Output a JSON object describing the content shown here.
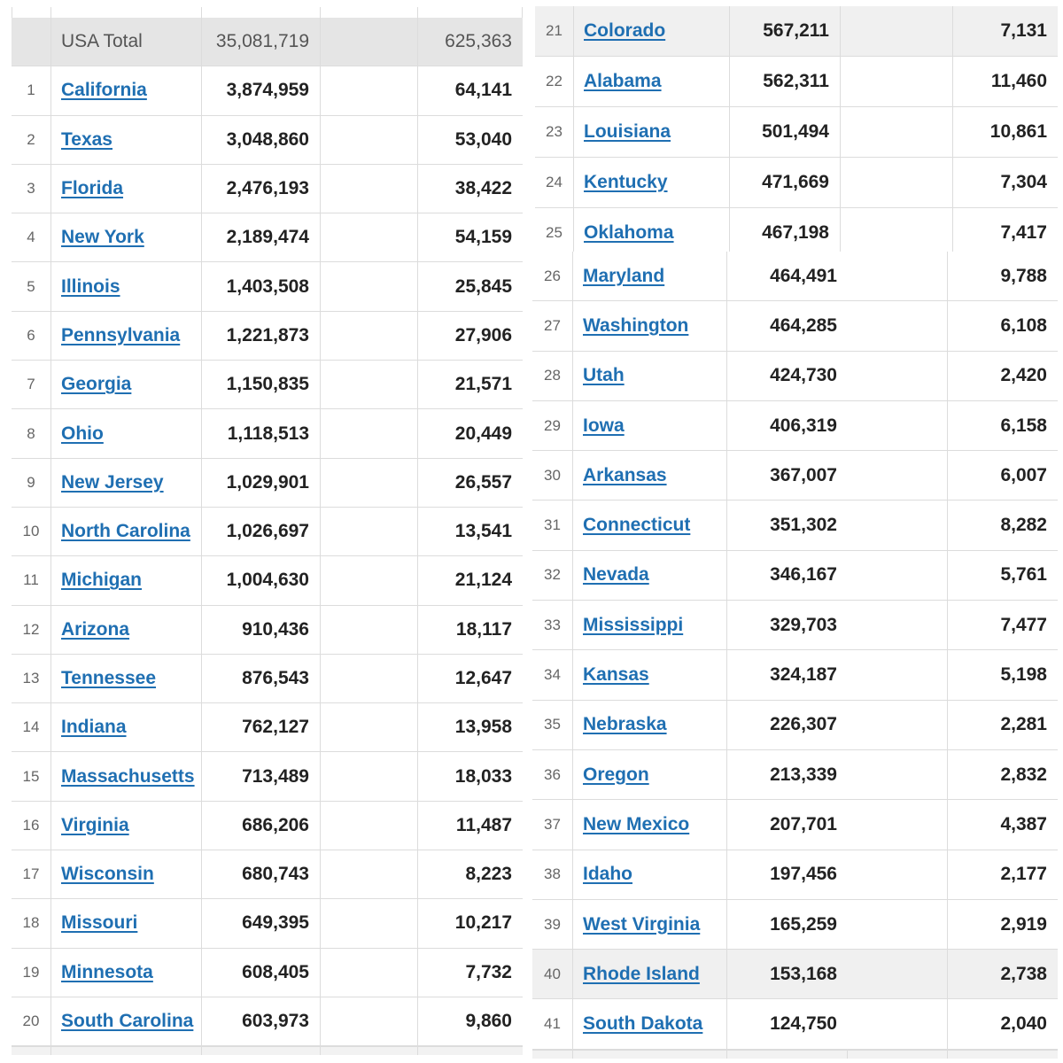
{
  "left_table": {
    "total": {
      "label": "USA Total",
      "cases": "35,081,719",
      "deaths": "625,363"
    },
    "rows": [
      {
        "rank": "1",
        "state": "California",
        "cases": "3,874,959",
        "deaths": "64,141"
      },
      {
        "rank": "2",
        "state": "Texas",
        "cases": "3,048,860",
        "deaths": "53,040"
      },
      {
        "rank": "3",
        "state": "Florida",
        "cases": "2,476,193",
        "deaths": "38,422"
      },
      {
        "rank": "4",
        "state": "New York",
        "cases": "2,189,474",
        "deaths": "54,159"
      },
      {
        "rank": "5",
        "state": "Illinois",
        "cases": "1,403,508",
        "deaths": "25,845"
      },
      {
        "rank": "6",
        "state": "Pennsylvania",
        "cases": "1,221,873",
        "deaths": "27,906"
      },
      {
        "rank": "7",
        "state": "Georgia",
        "cases": "1,150,835",
        "deaths": "21,571"
      },
      {
        "rank": "8",
        "state": "Ohio",
        "cases": "1,118,513",
        "deaths": "20,449"
      },
      {
        "rank": "9",
        "state": "New Jersey",
        "cases": "1,029,901",
        "deaths": "26,557"
      },
      {
        "rank": "10",
        "state": "North Carolina",
        "cases": "1,026,697",
        "deaths": "13,541"
      },
      {
        "rank": "11",
        "state": "Michigan",
        "cases": "1,004,630",
        "deaths": "21,124"
      },
      {
        "rank": "12",
        "state": "Arizona",
        "cases": "910,436",
        "deaths": "18,117"
      },
      {
        "rank": "13",
        "state": "Tennessee",
        "cases": "876,543",
        "deaths": "12,647"
      },
      {
        "rank": "14",
        "state": "Indiana",
        "cases": "762,127",
        "deaths": "13,958"
      },
      {
        "rank": "15",
        "state": "Massachusetts",
        "cases": "713,489",
        "deaths": "18,033"
      },
      {
        "rank": "16",
        "state": "Virginia",
        "cases": "686,206",
        "deaths": "11,487"
      },
      {
        "rank": "17",
        "state": "Wisconsin",
        "cases": "680,743",
        "deaths": "8,223"
      },
      {
        "rank": "18",
        "state": "Missouri",
        "cases": "649,395",
        "deaths": "10,217"
      },
      {
        "rank": "19",
        "state": "Minnesota",
        "cases": "608,405",
        "deaths": "7,732"
      },
      {
        "rank": "20",
        "state": "South Carolina",
        "cases": "603,973",
        "deaths": "9,860"
      }
    ]
  },
  "right_top_table": {
    "rows": [
      {
        "rank": "21",
        "state": "Colorado",
        "cases": "567,211",
        "deaths": "7,131"
      },
      {
        "rank": "22",
        "state": "Alabama",
        "cases": "562,311",
        "deaths": "11,460"
      },
      {
        "rank": "23",
        "state": "Louisiana",
        "cases": "501,494",
        "deaths": "10,861"
      },
      {
        "rank": "24",
        "state": "Kentucky",
        "cases": "471,669",
        "deaths": "7,304"
      },
      {
        "rank": "25",
        "state": "Oklahoma",
        "cases": "467,198",
        "deaths": "7,417"
      }
    ]
  },
  "right_bottom_table": {
    "rows": [
      {
        "rank": "26",
        "state": "Maryland",
        "cases": "464,491",
        "deaths": "9,788"
      },
      {
        "rank": "27",
        "state": "Washington",
        "cases": "464,285",
        "deaths": "6,108"
      },
      {
        "rank": "28",
        "state": "Utah",
        "cases": "424,730",
        "deaths": "2,420"
      },
      {
        "rank": "29",
        "state": "Iowa",
        "cases": "406,319",
        "deaths": "6,158"
      },
      {
        "rank": "30",
        "state": "Arkansas",
        "cases": "367,007",
        "deaths": "6,007"
      },
      {
        "rank": "31",
        "state": "Connecticut",
        "cases": "351,302",
        "deaths": "8,282"
      },
      {
        "rank": "32",
        "state": "Nevada",
        "cases": "346,167",
        "deaths": "5,761"
      },
      {
        "rank": "33",
        "state": "Mississippi",
        "cases": "329,703",
        "deaths": "7,477"
      },
      {
        "rank": "34",
        "state": "Kansas",
        "cases": "324,187",
        "deaths": "5,198"
      },
      {
        "rank": "35",
        "state": "Nebraska",
        "cases": "226,307",
        "deaths": "2,281"
      },
      {
        "rank": "36",
        "state": "Oregon",
        "cases": "213,339",
        "deaths": "2,832"
      },
      {
        "rank": "37",
        "state": "New Mexico",
        "cases": "207,701",
        "deaths": "4,387"
      },
      {
        "rank": "38",
        "state": "Idaho",
        "cases": "197,456",
        "deaths": "2,177"
      },
      {
        "rank": "39",
        "state": "West Virginia",
        "cases": "165,259",
        "deaths": "2,919"
      },
      {
        "rank": "40",
        "state": "Rhode Island",
        "cases": "153,168",
        "deaths": "2,738"
      },
      {
        "rank": "41",
        "state": "South Dakota",
        "cases": "124,750",
        "deaths": "2,040"
      }
    ]
  }
}
